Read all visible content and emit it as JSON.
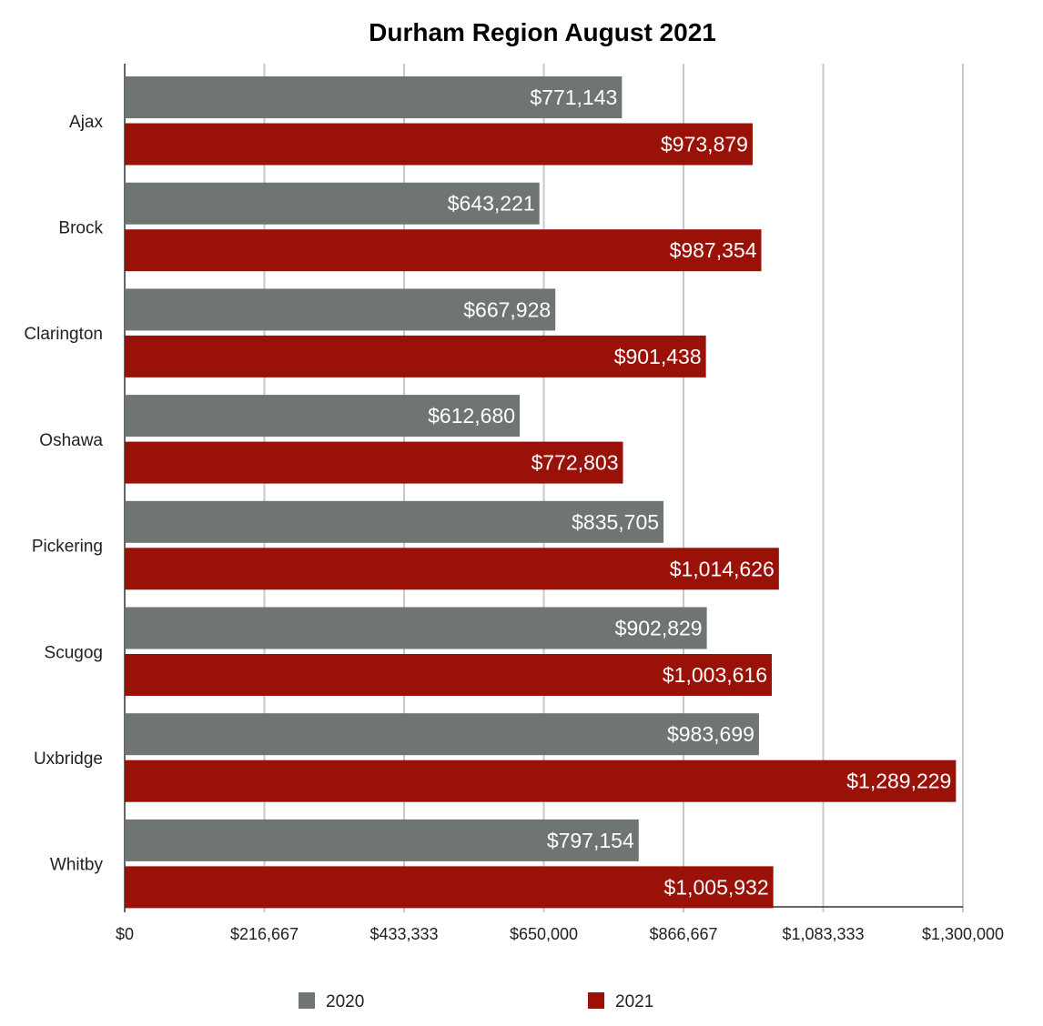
{
  "chart_data": {
    "type": "bar",
    "orientation": "horizontal",
    "title": "Durham Region August 2021",
    "xlabel": "",
    "ylabel": "",
    "categories": [
      "Ajax",
      "Brock",
      "Clarington",
      "Oshawa",
      "Pickering",
      "Scugog",
      "Uxbridge",
      "Whitby"
    ],
    "series": [
      {
        "name": "2020",
        "color": "#6f7570",
        "values": [
          771143,
          643221,
          667928,
          612680,
          835705,
          902829,
          983699,
          797154
        ],
        "value_labels": [
          "$771,143",
          "$643,221",
          "$667,928",
          "$612,680",
          "$835,705",
          "$902,829",
          "$983,699",
          "$797,154"
        ]
      },
      {
        "name": "2021",
        "color": "#9a1108",
        "values": [
          973879,
          987354,
          901438,
          772803,
          1014626,
          1003616,
          1289229,
          1005932
        ],
        "value_labels": [
          "$973,879",
          "$987,354",
          "$901,438",
          "$772,803",
          "$1,014,626",
          "$1,003,616",
          "$1,289,229",
          "$1,005,932"
        ]
      }
    ],
    "xlim": [
      0,
      1300000
    ],
    "ticks": [
      0,
      216667,
      433333,
      650000,
      866667,
      1083333,
      1300000
    ],
    "tick_labels": [
      "$0",
      "$216,667",
      "$433,333",
      "$650,000",
      "$866,667",
      "$1,083,333",
      "$1,300,000"
    ],
    "grid": true,
    "legend": "bottom"
  }
}
